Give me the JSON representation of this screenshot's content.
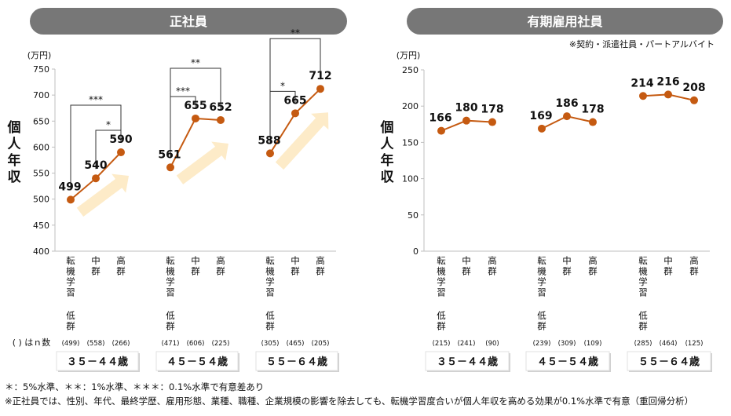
{
  "chart_data": [
    {
      "type": "line",
      "title": "正社員",
      "unit": "(万円)",
      "ylabel": "個人年収",
      "ylim": [
        400,
        750
      ],
      "yticks": [
        400,
        450,
        500,
        550,
        600,
        650,
        700,
        750
      ],
      "category_labels": [
        "転機学習低群",
        "中群",
        "高群"
      ],
      "n_label": "( ) はｎ数",
      "groups": [
        {
          "name": "３５－４４歳",
          "values": [
            499,
            540,
            590
          ],
          "n": [
            "(499)",
            "(558)",
            "(266)"
          ],
          "sig": [
            {
              "from": 1,
              "to": 2,
              "label": "*"
            },
            {
              "from": 0,
              "to": 2,
              "label": "***"
            }
          ]
        },
        {
          "name": "４５－５４歳",
          "values": [
            561,
            655,
            652
          ],
          "n": [
            "(471)",
            "(606)",
            "(225)"
          ],
          "sig": [
            {
              "from": 0,
              "to": 1,
              "label": "***"
            },
            {
              "from": 0,
              "to": 2,
              "label": "**"
            }
          ]
        },
        {
          "name": "５５－６４歳",
          "values": [
            588,
            665,
            712
          ],
          "n": [
            "(305)",
            "(465)",
            "(205)"
          ],
          "sig": [
            {
              "from": 0,
              "to": 1,
              "label": "*"
            },
            {
              "from": 0,
              "to": 2,
              "label": "**"
            }
          ]
        }
      ]
    },
    {
      "type": "line",
      "title": "有期雇用社員",
      "subtitle": "※契約・派遣社員・パートアルバイト",
      "unit": "(万円)",
      "ylabel": "個人年収",
      "ylim": [
        0,
        250
      ],
      "yticks": [
        0,
        50,
        100,
        150,
        200,
        250
      ],
      "category_labels": [
        "転機学習低群",
        "中群",
        "高群"
      ],
      "groups": [
        {
          "name": "３５－４４歳",
          "values": [
            166,
            180,
            178
          ],
          "n": [
            "(215)",
            "(241)",
            "(90)"
          ],
          "sig": []
        },
        {
          "name": "４５－５４歳",
          "values": [
            169,
            186,
            178
          ],
          "n": [
            "(239)",
            "(309)",
            "(109)"
          ],
          "sig": []
        },
        {
          "name": "５５－６４歳",
          "values": [
            214,
            216,
            208
          ],
          "n": [
            "(285)",
            "(464)",
            "(125)"
          ],
          "sig": []
        }
      ]
    }
  ],
  "notes": [
    "＊：5%水準、＊＊：1%水準、＊＊＊：0.1%水準で有意差あり",
    "※正社員では、性別、年代、最終学歴、雇用形態、業種、職種、企業規模の影響を除去しても、転機学習度合いが個人年収を高める効果が0.1%水準で有意（重回帰分析）"
  ],
  "colors": {
    "line": "#c55a11",
    "header": "#777777",
    "arrow": "#fdebc8",
    "axis": "#bfbfbf"
  }
}
